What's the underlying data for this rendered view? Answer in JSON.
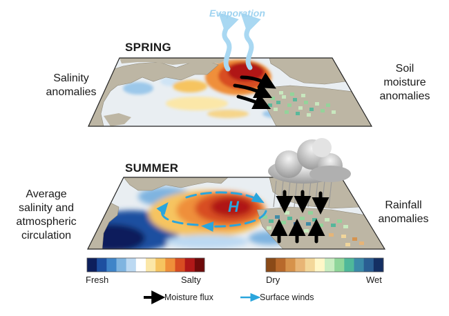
{
  "evaporation_label": "Evaporation",
  "panels": {
    "spring": {
      "title": "SPRING",
      "left_label": [
        "Salinity",
        "anomalies"
      ],
      "right_label": [
        "Soil",
        "moisture",
        "anomalies"
      ]
    },
    "summer": {
      "title": "SUMMER",
      "high_pressure": "H",
      "left_label": [
        "Average",
        "salinity and",
        "atmospheric",
        "circulation"
      ],
      "right_label": [
        "Rainfall",
        "anomalies"
      ]
    }
  },
  "colorbars": {
    "salinity": {
      "min_label": "Fresh",
      "max_label": "Salty",
      "colors": [
        "#0d1f5c",
        "#1d4fa0",
        "#3f84c8",
        "#7fb4e0",
        "#bcd9f2",
        "#ffffff",
        "#fbe7a8",
        "#f6c460",
        "#ef8f3a",
        "#d84d22",
        "#b01818",
        "#6e0a0a"
      ]
    },
    "rainfall": {
      "min_label": "Dry",
      "max_label": "Wet",
      "colors": [
        "#8a4a18",
        "#b8692b",
        "#d6924b",
        "#e8b576",
        "#f3d79a",
        "#fff7c8",
        "#c9edc1",
        "#8fd69a",
        "#4fb89a",
        "#3b8aa8",
        "#2a5e93",
        "#142f63"
      ]
    }
  },
  "legend": {
    "moisture_flux": "Moisture flux",
    "surface_winds": "Surface winds"
  },
  "colors": {
    "land": "#bdb6a4",
    "ocean_base": "#e9eef2",
    "moisture_arrow": "#000000",
    "wind_arrow": "#2aa5dc",
    "evaporation": "#a9d8f2"
  }
}
